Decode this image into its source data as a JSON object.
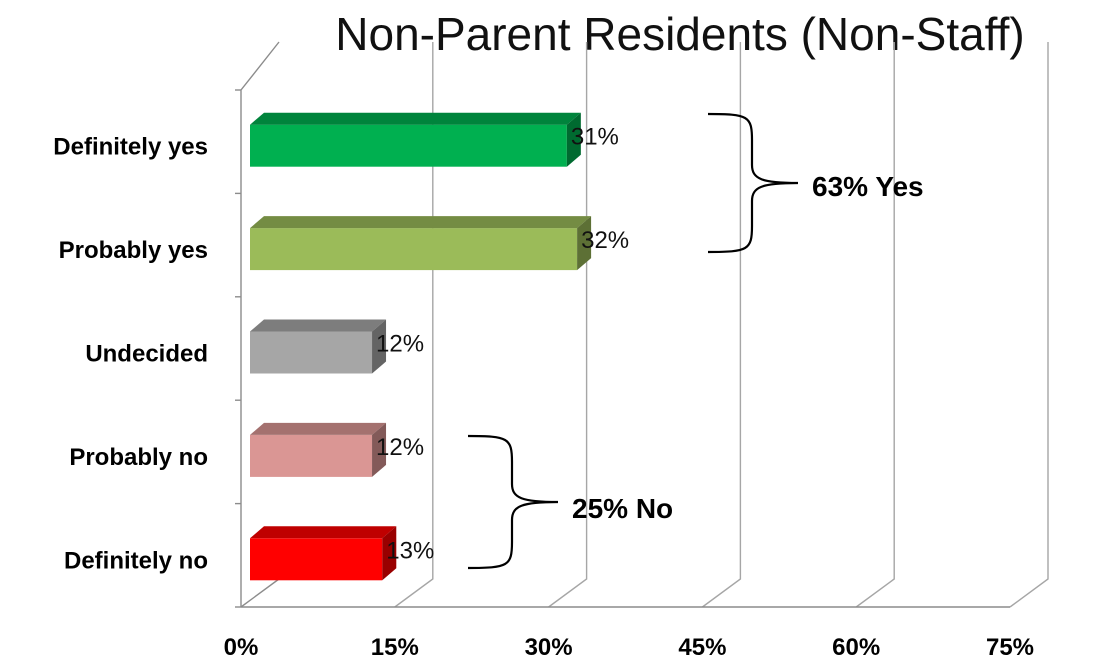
{
  "chart_data": {
    "type": "bar",
    "orientation": "horizontal",
    "style": "3d",
    "title": "Non-Parent Residents (Non-Staff)",
    "categories": [
      "Definitely yes",
      "Probably yes",
      "Undecided",
      "Probably no",
      "Definitely no"
    ],
    "values": [
      31,
      32,
      12,
      12,
      13
    ],
    "value_labels": [
      "31%",
      "32%",
      "12%",
      "12%",
      "13%"
    ],
    "colors": [
      "#00b050",
      "#9bbb59",
      "#a6a6a6",
      "#da9694",
      "#ff0000"
    ],
    "xlim": [
      0,
      75
    ],
    "x_ticks": [
      0,
      15,
      30,
      45,
      60,
      75
    ],
    "x_tick_labels": [
      "0%",
      "15%",
      "30%",
      "45%",
      "60%",
      "75%"
    ],
    "grid": true,
    "legend": "none",
    "group_annotations": [
      {
        "label": "63% Yes",
        "categories": [
          "Definitely yes",
          "Probably yes"
        ],
        "side": "right"
      },
      {
        "label": "25% No",
        "categories": [
          "Probably no",
          "Definitely no"
        ],
        "side": "right"
      }
    ]
  }
}
